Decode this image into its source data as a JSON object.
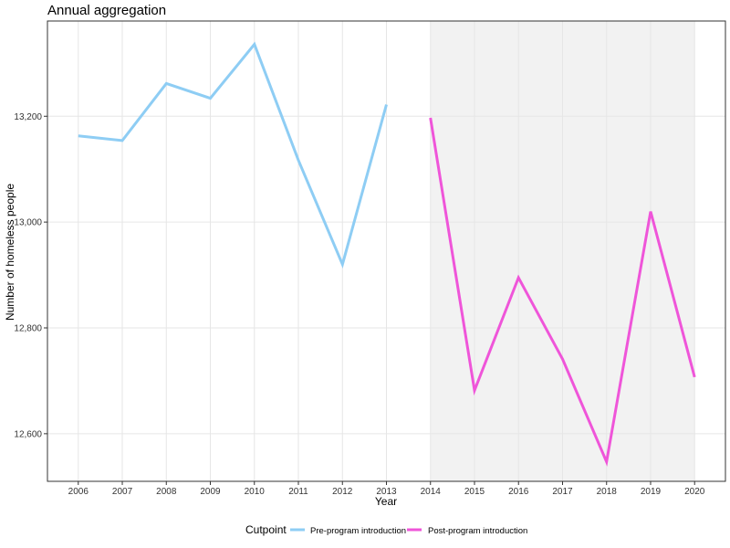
{
  "chart_data": {
    "type": "line",
    "title": "Annual aggregation",
    "xlabel": "Year",
    "ylabel": "Number of homeless people",
    "x": [
      2006,
      2007,
      2008,
      2009,
      2010,
      2011,
      2012,
      2013,
      2014,
      2015,
      2016,
      2017,
      2018,
      2019,
      2020
    ],
    "x_tick_labels": [
      "2006",
      "2007",
      "2008",
      "2009",
      "2010",
      "2011",
      "2012",
      "2013",
      "2014",
      "2015",
      "2016",
      "2017",
      "2018",
      "2019",
      "2020"
    ],
    "y_ticks": [
      12600,
      12800,
      13000,
      13200
    ],
    "y_tick_labels": [
      "12,600",
      "12,800",
      "13,000",
      "13,200"
    ],
    "xlim": [
      2005.3,
      2020.7
    ],
    "ylim": [
      12510,
      13380
    ],
    "grid": true,
    "shaded_region": {
      "x_start": 2014,
      "x_end": 2020,
      "color": "#f2f2f2"
    },
    "legend": {
      "title": "Cutpoint",
      "position": "bottom"
    },
    "series": [
      {
        "name": "Pre-program introduction",
        "color": "#8ecdf4",
        "points": [
          [
            2006,
            13163
          ],
          [
            2007,
            13154
          ],
          [
            2008,
            13262
          ],
          [
            2009,
            13234
          ],
          [
            2010,
            13336
          ],
          [
            2011,
            13117
          ],
          [
            2012,
            12920
          ],
          [
            2013,
            13222
          ]
        ]
      },
      {
        "name": "Post-program introduction",
        "color": "#ef55d9",
        "points": [
          [
            2014,
            13197
          ],
          [
            2015,
            12682
          ],
          [
            2016,
            12895
          ],
          [
            2017,
            12741
          ],
          [
            2018,
            12547
          ],
          [
            2019,
            13020
          ],
          [
            2020,
            12707
          ]
        ]
      }
    ]
  }
}
